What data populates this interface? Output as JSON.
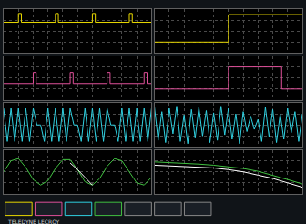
{
  "footer": "TELEDYNE LECROY",
  "chart_data": [
    {
      "type": "line",
      "x": [
        0,
        1,
        1,
        1.2,
        1.2,
        3.5,
        3.5,
        3.7,
        3.7,
        6,
        6,
        6.2,
        6.2,
        8.5,
        8.5,
        8.7,
        8.7,
        10
      ],
      "series": [
        {
          "color": "#e8d800",
          "values": [
            0.8,
            0.8,
            1.6,
            1.6,
            0.8,
            0.8,
            1.6,
            1.6,
            0.8,
            0.8,
            1.6,
            1.6,
            0.8,
            0.8,
            1.6,
            1.6,
            0.8,
            0.8
          ]
        }
      ],
      "xlim": [
        0,
        10
      ],
      "ylim": [
        -2,
        2
      ],
      "xticks": [
        0,
        1,
        2,
        3,
        4,
        5,
        6,
        7,
        8,
        9,
        10
      ],
      "yticks": [
        -2,
        -1,
        0,
        1,
        2
      ],
      "grid": true,
      "tick_labels": false
    },
    {
      "type": "line",
      "x": [
        0,
        2,
        2,
        2.2,
        2.2,
        4.5,
        4.5,
        4.7,
        4.7,
        7,
        7,
        7.2,
        7.2,
        9.5,
        9.5,
        9.7,
        9.7,
        10
      ],
      "series": [
        {
          "color": "#e0509a",
          "values": [
            -0.5,
            -0.5,
            0.5,
            0.5,
            -0.5,
            -0.5,
            0.5,
            0.5,
            -0.5,
            -0.5,
            0.5,
            0.5,
            -0.5,
            -0.5,
            0.5,
            0.5,
            -0.5,
            -0.5
          ]
        }
      ],
      "xlim": [
        0,
        10
      ],
      "ylim": [
        -2,
        2
      ],
      "xticks": [
        0,
        1,
        2,
        3,
        4,
        5,
        6,
        7,
        8,
        9,
        10
      ],
      "yticks": [
        -2,
        -1,
        0,
        1,
        2
      ],
      "grid": true,
      "tick_labels": false
    },
    {
      "type": "line",
      "x": [
        0,
        0.25,
        0.5,
        0.75,
        1,
        1.25,
        1.5,
        1.75,
        2,
        2.25,
        2.5,
        2.75,
        3,
        3.25,
        3.5,
        3.75,
        4,
        4.25,
        4.5,
        4.75,
        5,
        5.25,
        5.5,
        5.75,
        6,
        6.25,
        6.5,
        6.75,
        7,
        7.25,
        7.5,
        7.75,
        8,
        8.25,
        8.5,
        8.75,
        9,
        9.25,
        9.5,
        9.75,
        10
      ],
      "series": [
        {
          "color": "#30d0e0",
          "values": [
            1.5,
            -1.5,
            1.5,
            -1.5,
            1.5,
            -1.5,
            1.5,
            -1.5,
            1.5,
            0,
            0,
            -1.5,
            1.5,
            -1.5,
            1.5,
            -1.5,
            1.5,
            -1.5,
            1.5,
            0,
            0,
            -1.5,
            1.5,
            -1.5,
            1.5,
            -1.5,
            1.5,
            -1.5,
            1.5,
            0,
            0,
            -1.5,
            1.5,
            -1.5,
            1.5,
            -1.5,
            1.5,
            -1.5,
            1.5,
            -1.5,
            1.5
          ]
        }
      ],
      "xlim": [
        0,
        10
      ],
      "ylim": [
        -2,
        2
      ],
      "xticks": [
        0,
        1,
        2,
        3,
        4,
        5,
        6,
        7,
        8,
        9,
        10
      ],
      "yticks": [
        -2,
        -1,
        0,
        1,
        2
      ],
      "grid": true,
      "tick_labels": false
    },
    {
      "type": "line",
      "x": [
        0,
        0.5,
        1,
        1.5,
        2,
        2.5,
        3,
        3.5,
        4,
        4.5,
        5,
        5.5,
        6,
        6.5,
        7,
        7.5,
        8,
        8.5,
        9,
        9.5,
        10
      ],
      "series": [
        {
          "color": "#40c040",
          "values": [
            0,
            1.0,
            1.2,
            0.4,
            -0.7,
            -1.2,
            -0.8,
            0.3,
            1.1,
            1.1,
            0.2,
            -0.9,
            -1.2,
            -0.6,
            0.5,
            1.2,
            1.0,
            0,
            -1.0,
            -1.2,
            -0.5
          ]
        },
        {
          "color": "#ffffff",
          "values": [
            null,
            null,
            null,
            null,
            null,
            null,
            null,
            null,
            null,
            0.8,
            0.2,
            -0.5,
            -1.2,
            null,
            null,
            null,
            null,
            null,
            null,
            null,
            null
          ]
        }
      ],
      "xlim": [
        0,
        10
      ],
      "ylim": [
        -2,
        2
      ],
      "xticks": [
        0,
        1,
        2,
        3,
        4,
        5,
        6,
        7,
        8,
        9,
        10
      ],
      "yticks": [
        -2,
        -1,
        0,
        1,
        2
      ],
      "grid": true,
      "tick_labels": false
    },
    {
      "type": "line",
      "x": [
        0,
        5,
        5,
        10
      ],
      "series": [
        {
          "color": "#e8d800",
          "values": [
            -1,
            -1,
            1.5,
            1.5
          ]
        }
      ],
      "xlim": [
        0,
        10
      ],
      "ylim": [
        -2,
        2
      ],
      "xticks": [
        0,
        1,
        2,
        3,
        4,
        5,
        6,
        7,
        8,
        9,
        10
      ],
      "yticks": [
        -2,
        -1,
        0,
        1,
        2
      ],
      "grid": true,
      "tick_labels": false
    },
    {
      "type": "line",
      "x": [
        0,
        5,
        5,
        8.6,
        8.6,
        10
      ],
      "series": [
        {
          "color": "#e0509a",
          "values": [
            -1,
            -1,
            1,
            1,
            -1,
            -1
          ]
        }
      ],
      "xlim": [
        0,
        10
      ],
      "ylim": [
        -2,
        2
      ],
      "xticks": [
        0,
        1,
        2,
        3,
        4,
        5,
        6,
        7,
        8,
        9,
        10
      ],
      "yticks": [
        -2,
        -1,
        0,
        1,
        2
      ],
      "grid": true,
      "tick_labels": false
    },
    {
      "type": "line",
      "x": [
        0,
        0.25,
        0.5,
        0.75,
        1,
        1.25,
        1.5,
        1.75,
        2,
        2.25,
        2.5,
        2.75,
        3,
        3.25,
        3.5,
        3.75,
        4,
        4.25,
        4.5,
        4.75,
        5,
        5.25,
        5.5,
        5.75,
        6,
        6.25,
        6.5,
        6.75,
        7,
        7.25,
        7.5,
        7.75,
        8,
        8.25,
        8.5,
        8.75,
        9,
        9.25,
        9.5,
        9.75,
        10
      ],
      "series": [
        {
          "color": "#30d0e0",
          "values": [
            1.6,
            -1.4,
            1.2,
            -1.6,
            1.5,
            -0.8,
            1.7,
            -1.5,
            0.9,
            -1.7,
            1.4,
            -1.2,
            1.6,
            -1.0,
            1.3,
            -1.6,
            1.1,
            -1.4,
            1.7,
            -0.9,
            1.5,
            -1.3,
            1.0,
            -1.7,
            1.2,
            -0.6,
            0.8,
            -0.4,
            0.5,
            -1.5,
            1.6,
            -1.1,
            1.4,
            -1.6,
            1.0,
            -1.3,
            1.5,
            -0.7,
            1.2,
            -1.5,
            1.0
          ]
        }
      ],
      "xlim": [
        0,
        10
      ],
      "ylim": [
        -2,
        2
      ],
      "xticks": [
        0,
        1,
        2,
        3,
        4,
        5,
        6,
        7,
        8,
        9,
        10
      ],
      "yticks": [
        -2,
        -1,
        0,
        1,
        2
      ],
      "grid": true,
      "tick_labels": false
    },
    {
      "type": "line",
      "x": [
        0,
        1,
        2,
        3,
        4,
        5,
        6,
        7,
        8,
        9,
        10
      ],
      "series": [
        {
          "color": "#40c040",
          "values": [
            0.9,
            0.85,
            0.8,
            0.7,
            0.6,
            0.45,
            0.3,
            0.05,
            -0.3,
            -0.7,
            -1.1
          ]
        },
        {
          "color": "#ffffff",
          "values": [
            0.6,
            0.55,
            0.5,
            0.45,
            0.35,
            0.2,
            0.0,
            -0.3,
            -0.6,
            -1.0,
            -1.4
          ]
        }
      ],
      "xlim": [
        0,
        10
      ],
      "ylim": [
        -2,
        2
      ],
      "xticks": [
        0,
        1,
        2,
        3,
        4,
        5,
        6,
        7,
        8,
        9,
        10
      ],
      "yticks": [
        -2,
        -1,
        0,
        1,
        2
      ],
      "grid": true,
      "tick_labels": false
    }
  ]
}
